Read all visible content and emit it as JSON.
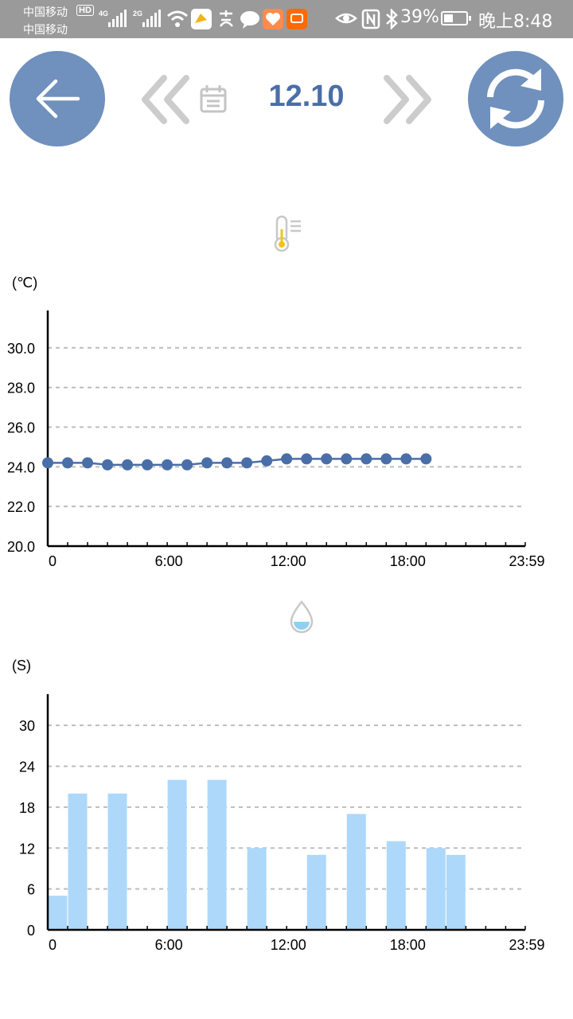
{
  "status_bar": {
    "carrier_1": "中国移动",
    "carrier_2": "中国移动",
    "hd": "HD",
    "network_1": "4G",
    "network_2": "2G",
    "battery": "39%",
    "time": "晚上8:48"
  },
  "header": {
    "date": "12.10",
    "icons": [
      "back-arrow-icon",
      "double-chevron-left-icon",
      "calendar-icon",
      "double-chevron-right-icon",
      "refresh-icon"
    ]
  },
  "colors": {
    "accent": "#7090bd",
    "date_text": "#4a6ea8",
    "line_series": "#4a6ea8",
    "bar_series": "#add8fa",
    "grid": "#bdbdbd",
    "status_bar": "#9a9a9a"
  },
  "chart_data": [
    {
      "type": "line",
      "unit_label": "(℃)",
      "xlim": [
        0,
        23.983
      ],
      "x_ticks": [
        {
          "value": 0,
          "label": "0"
        },
        {
          "value": 6,
          "label": "6:00"
        },
        {
          "value": 12,
          "label": "12:00"
        },
        {
          "value": 18,
          "label": "18:00"
        },
        {
          "value": 23.983,
          "label": "23:59"
        }
      ],
      "ylim": [
        20,
        31
      ],
      "y_ticks": [
        {
          "value": 20,
          "label": "20.0"
        },
        {
          "value": 22,
          "label": "22.0"
        },
        {
          "value": 24,
          "label": "24.0"
        },
        {
          "value": 26,
          "label": "26.0"
        },
        {
          "value": 28,
          "label": "28.0"
        },
        {
          "value": 30,
          "label": "30.0"
        }
      ],
      "grid": true,
      "series": [
        {
          "x": [
            0,
            1,
            2,
            3,
            4,
            5,
            6,
            7,
            8,
            9,
            10,
            11,
            12,
            13,
            14,
            15,
            16,
            17,
            18,
            19
          ],
          "values": [
            24.2,
            24.2,
            24.2,
            24.1,
            24.1,
            24.1,
            24.1,
            24.1,
            24.2,
            24.2,
            24.2,
            24.3,
            24.4,
            24.4,
            24.4,
            24.4,
            24.4,
            24.4,
            24.4,
            24.4
          ]
        }
      ]
    },
    {
      "type": "bar",
      "unit_label": "(S)",
      "xlim": [
        0,
        23.983
      ],
      "x_ticks": [
        {
          "value": 0,
          "label": "0"
        },
        {
          "value": 6,
          "label": "6:00"
        },
        {
          "value": 12,
          "label": "12:00"
        },
        {
          "value": 18,
          "label": "18:00"
        },
        {
          "value": 23.983,
          "label": "23:59"
        }
      ],
      "ylim": [
        0,
        32
      ],
      "y_ticks": [
        {
          "value": 0,
          "label": "0"
        },
        {
          "value": 6,
          "label": "6"
        },
        {
          "value": 12,
          "label": "12"
        },
        {
          "value": 18,
          "label": "18"
        },
        {
          "value": 24,
          "label": "24"
        },
        {
          "value": 30,
          "label": "30"
        }
      ],
      "grid": true,
      "series": [
        {
          "x": [
            0,
            1,
            3,
            6,
            8,
            10,
            13,
            15,
            17,
            19,
            20
          ],
          "values": [
            5,
            20,
            20,
            22,
            22,
            12,
            11,
            17,
            13,
            12,
            11
          ]
        }
      ]
    }
  ]
}
